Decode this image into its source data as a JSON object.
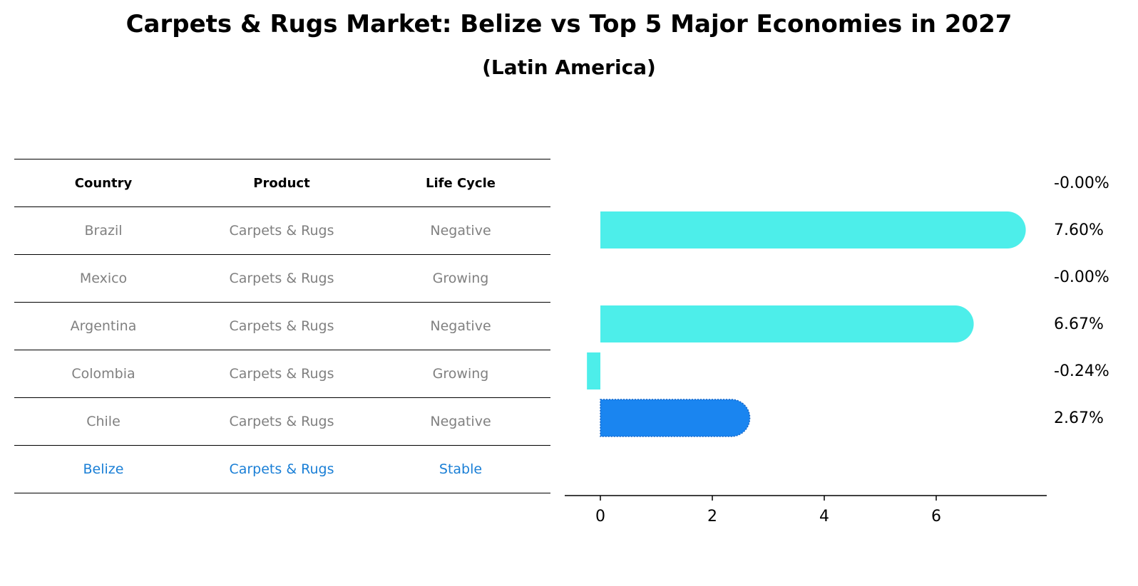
{
  "title": "Carpets & Rugs Market: Belize vs Top 5 Major Economies in 2027",
  "subtitle": "(Latin America)",
  "table": {
    "headers": [
      "Country",
      "Product",
      "Life Cycle"
    ],
    "rows": [
      [
        "Brazil",
        "Carpets & Rugs",
        "Negative"
      ],
      [
        "Mexico",
        "Carpets & Rugs",
        "Growing"
      ],
      [
        "Argentina",
        "Carpets & Rugs",
        "Negative"
      ],
      [
        "Colombia",
        "Carpets & Rugs",
        "Growing"
      ],
      [
        "Chile",
        "Carpets & Rugs",
        "Negative"
      ],
      [
        "Belize",
        "Carpets & Rugs",
        "Stable"
      ]
    ],
    "highlight_row": 5
  },
  "chart_data": {
    "type": "bar",
    "orientation": "horizontal",
    "title": "Carpets & Rugs Market: Belize vs Top 5 Major Economies in 2027",
    "subtitle": "(Latin America)",
    "categories": [
      "Brazil",
      "Mexico",
      "Argentina",
      "Colombia",
      "Chile",
      "Belize"
    ],
    "values": [
      -0.0,
      7.6,
      -0.0,
      6.67,
      -0.24,
      2.67
    ],
    "value_labels": [
      "-0.00%",
      "7.60%",
      "-0.00%",
      "6.67%",
      "-0.24%",
      "2.67%"
    ],
    "xticks": [
      "0",
      "2",
      "4",
      "6"
    ],
    "xlim": [
      -0.65,
      8.0
    ],
    "colors": {
      "default": "#4deeea",
      "highlight": "#1a85f0"
    },
    "highlight": "Belize",
    "grid": false
  }
}
